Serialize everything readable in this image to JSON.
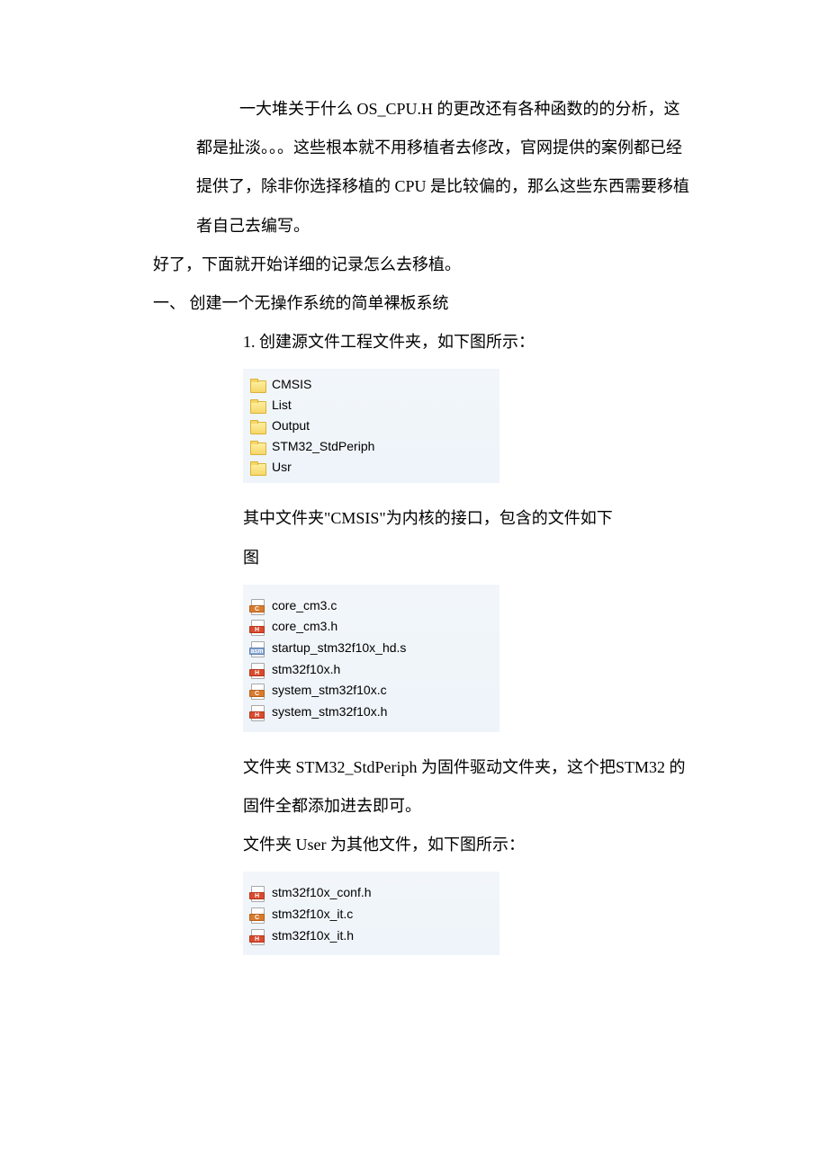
{
  "para1": "一大堆关于什么 OS_CPU.H 的更改还有各种函数的的分析，这都是扯淡。。。这些根本就不用移植者去修改，官网提供的案例都已经提供了，除非你选择移植的 CPU 是比较偏的，那么这些东西需要移植者自己去编写。",
  "para2": "好了，下面就开始详细的记录怎么去移植。",
  "heading": "一、 创建一个无操作系统的简单裸板系统",
  "item1": "1.   创建源文件工程文件夹，如下图所示：",
  "folder_list": {
    "bg": "#eef4fa",
    "items": [
      {
        "name": "CMSIS"
      },
      {
        "name": "List"
      },
      {
        "name": "Output"
      },
      {
        "name": "STM32_StdPeriph"
      },
      {
        "name": "Usr"
      }
    ]
  },
  "para3_line1": "其中文件夹\"CMSIS\"为内核的接口，包含的文件如下",
  "para3_line2": "图",
  "cmsis_files": {
    "bg": "#eef4fa",
    "items": [
      {
        "name": "core_cm3.c",
        "type": "c"
      },
      {
        "name": "core_cm3.h",
        "type": "h"
      },
      {
        "name": "startup_stm32f10x_hd.s",
        "type": "asm"
      },
      {
        "name": "stm32f10x.h",
        "type": "h"
      },
      {
        "name": "system_stm32f10x.c",
        "type": "c"
      },
      {
        "name": "system_stm32f10x.h",
        "type": "h"
      }
    ]
  },
  "para4": "文件夹 STM32_StdPeriph 为固件驱动文件夹，这个把STM32 的固件全都添加进去即可。",
  "para5": "文件夹 User 为其他文件，如下图所示：",
  "user_files": {
    "bg": "#eef4fa",
    "items": [
      {
        "name": "stm32f10x_conf.h",
        "type": "h"
      },
      {
        "name": "stm32f10x_it.c",
        "type": "c"
      },
      {
        "name": "stm32f10x_it.h",
        "type": "h"
      }
    ]
  }
}
